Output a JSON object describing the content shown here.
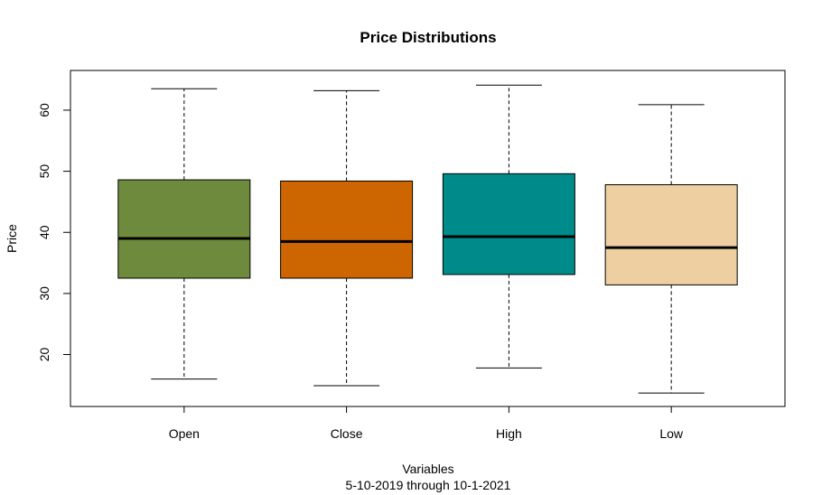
{
  "chart_data": {
    "type": "boxplot",
    "title": "Price Distributions",
    "xlabel": "Variables",
    "subtitle": "5-10-2019 through 10-1-2021",
    "ylabel": "Price",
    "ylim": [
      11.5,
      66.5
    ],
    "yticks": [
      "20",
      "30",
      "40",
      "50",
      "60"
    ],
    "categories": [
      "Open",
      "Close",
      "High",
      "Low"
    ],
    "boxes": [
      {
        "name": "Open",
        "color": "#6E8B3D",
        "min": 16.0,
        "q1": 32.5,
        "median": 39.0,
        "q3": 48.6,
        "max": 63.5
      },
      {
        "name": "Close",
        "color": "#CD6600",
        "min": 14.9,
        "q1": 32.5,
        "median": 38.5,
        "q3": 48.4,
        "max": 63.2
      },
      {
        "name": "High",
        "color": "#008B8B",
        "min": 17.8,
        "q1": 33.1,
        "median": 39.3,
        "q3": 49.6,
        "max": 64.1
      },
      {
        "name": "Low",
        "color": "#EECFA1",
        "min": 13.7,
        "q1": 31.4,
        "median": 37.5,
        "q3": 47.8,
        "max": 60.9
      }
    ],
    "grid": false,
    "legend": "none"
  }
}
